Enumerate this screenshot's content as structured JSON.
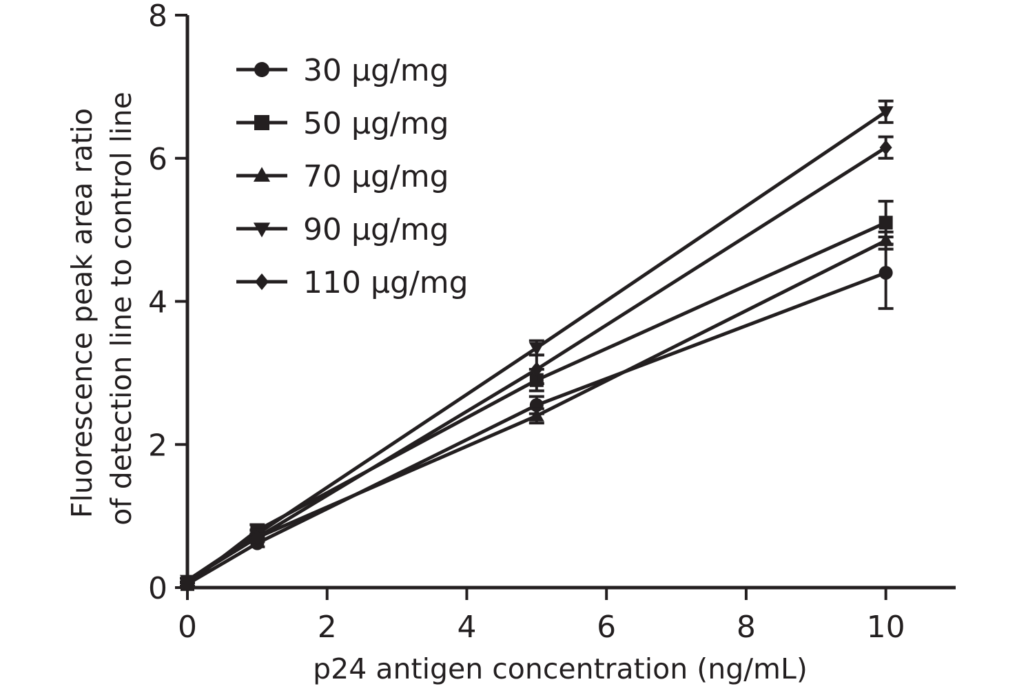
{
  "chart_data": {
    "type": "line",
    "xlabel": "p24 antigen concentration (ng/mL)",
    "ylabel_lines": [
      "Fluorescence peak area ratio",
      "of detection line to control line"
    ],
    "xlim": [
      0,
      11
    ],
    "ylim": [
      0,
      8
    ],
    "x_ticks": [
      0,
      2,
      4,
      6,
      8,
      10
    ],
    "y_ticks": [
      0,
      2,
      4,
      6,
      8
    ],
    "grid": false,
    "legend_position": "top-left",
    "error_bars": true,
    "x": [
      0,
      1,
      5,
      10
    ],
    "series": [
      {
        "name": "30 μg/mg",
        "marker": "circle",
        "values": [
          0.05,
          0.62,
          2.55,
          4.4
        ],
        "errors": [
          0.03,
          0.05,
          0.12,
          0.5
        ]
      },
      {
        "name": "50 μg/mg",
        "marker": "square",
        "values": [
          0.05,
          0.8,
          2.9,
          5.1
        ],
        "errors": [
          0.03,
          0.08,
          0.15,
          0.3
        ]
      },
      {
        "name": "70 μg/mg",
        "marker": "triangle-up",
        "values": [
          0.1,
          0.7,
          2.4,
          4.85
        ],
        "errors": [
          0.03,
          0.05,
          0.1,
          0.12
        ]
      },
      {
        "name": "90 μg/mg",
        "marker": "triangle-down",
        "values": [
          0.1,
          0.75,
          3.35,
          6.65
        ],
        "errors": [
          0.03,
          0.05,
          0.1,
          0.15
        ]
      },
      {
        "name": "110 μg/mg",
        "marker": "diamond",
        "values": [
          0.1,
          0.7,
          3.05,
          6.15
        ],
        "errors": [
          0.03,
          0.05,
          0.2,
          0.15
        ]
      }
    ]
  }
}
